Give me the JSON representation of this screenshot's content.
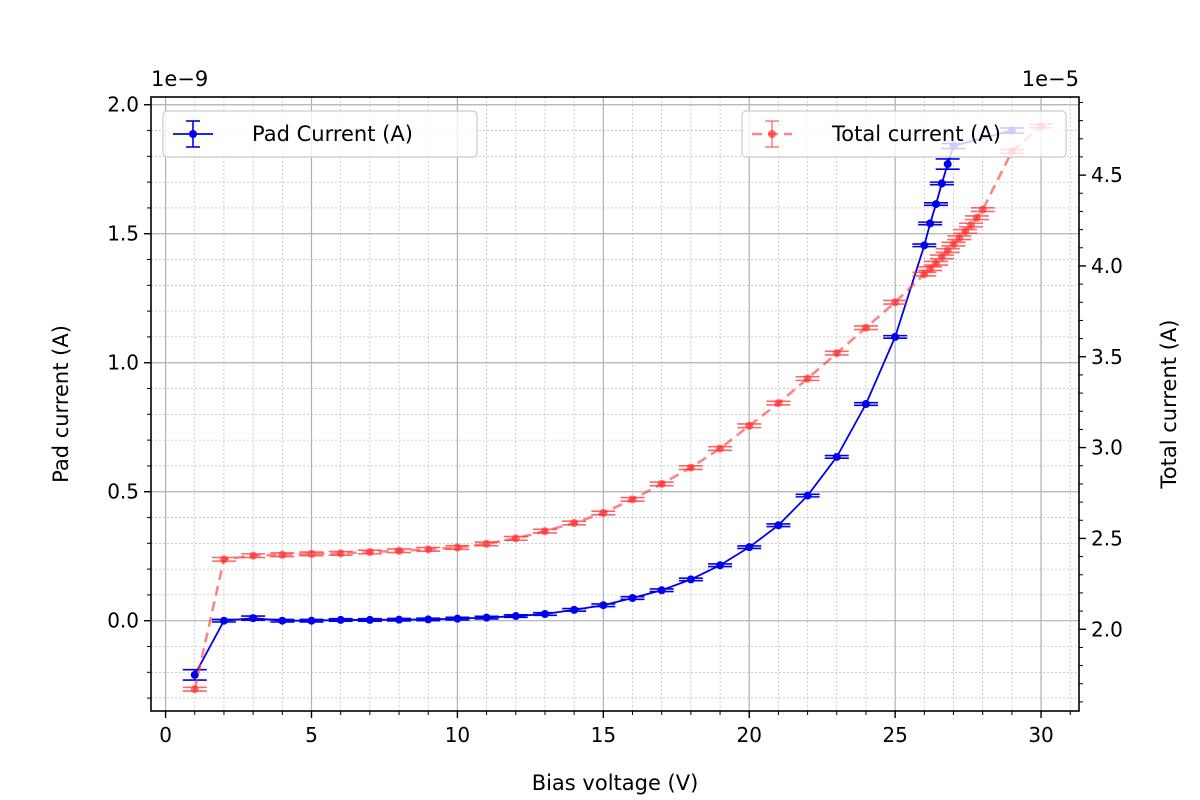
{
  "chart_data": {
    "type": "line",
    "xlabel": "Bias voltage (V)",
    "ylabel_left": "Pad current (A)",
    "ylabel_right": "Total current (A)",
    "left_exponent_label": "1e−9",
    "right_exponent_label": "1e−5",
    "xlim": [
      -0.5,
      31.3
    ],
    "ylim_left": [
      -0.35,
      2.03
    ],
    "ylim_right": [
      1.55,
      4.93
    ],
    "x_ticks": [
      0,
      5,
      10,
      15,
      20,
      25,
      30
    ],
    "x_tick_labels": [
      "0",
      "5",
      "10",
      "15",
      "20",
      "25",
      "30"
    ],
    "y_left_ticks": [
      0.0,
      0.5,
      1.0,
      1.5,
      2.0
    ],
    "y_left_tick_labels": [
      "0.0",
      "0.5",
      "1.0",
      "1.5",
      "2.0"
    ],
    "y_right_ticks": [
      2.0,
      2.5,
      3.0,
      3.5,
      4.0,
      4.5
    ],
    "y_right_tick_labels": [
      "2.0",
      "2.5",
      "3.0",
      "3.5",
      "4.0",
      "4.5"
    ],
    "grid": true,
    "minor_grid": true,
    "series": [
      {
        "name": "Pad Current (A)",
        "axis": "left",
        "color": "#0000ee",
        "linestyle": "solid",
        "legend_position": "top-left",
        "x": [
          1,
          2,
          3,
          4,
          5,
          6,
          7,
          8,
          9,
          10,
          11,
          12,
          13,
          14,
          15,
          16,
          17,
          18,
          19,
          20,
          21,
          22,
          23,
          24,
          25,
          26,
          26.2,
          26.4,
          26.6,
          26.8,
          27,
          29
        ],
        "y": [
          -0.21,
          0.0,
          0.01,
          0.0,
          0.0,
          0.003,
          0.003,
          0.004,
          0.005,
          0.008,
          0.012,
          0.018,
          0.026,
          0.042,
          0.06,
          0.088,
          0.118,
          0.16,
          0.215,
          0.285,
          0.37,
          0.485,
          0.635,
          0.84,
          1.1,
          1.455,
          1.54,
          1.615,
          1.695,
          1.77,
          1.84,
          1.9
        ],
        "yerr": [
          0.02,
          0.005,
          0.008,
          0.005,
          0.005,
          0.005,
          0.005,
          0.005,
          0.005,
          0.005,
          0.005,
          0.005,
          0.005,
          0.005,
          0.005,
          0.005,
          0.005,
          0.005,
          0.005,
          0.005,
          0.005,
          0.005,
          0.005,
          0.005,
          0.005,
          0.005,
          0.005,
          0.005,
          0.005,
          0.02,
          0.01,
          0.01
        ]
      },
      {
        "name": "Total current (A)",
        "axis": "right",
        "color": "#ff3333",
        "linestyle": "dashed",
        "legend_position": "top-right",
        "x": [
          1,
          2,
          3,
          4,
          5,
          6,
          7,
          8,
          9,
          10,
          11,
          12,
          13,
          14,
          15,
          16,
          17,
          18,
          19,
          20,
          21,
          22,
          23,
          24,
          25,
          26,
          26.2,
          26.4,
          26.6,
          26.8,
          27,
          27.2,
          27.4,
          27.6,
          27.8,
          28,
          29,
          30
        ],
        "y": [
          1.67,
          2.385,
          2.405,
          2.41,
          2.415,
          2.418,
          2.425,
          2.432,
          2.44,
          2.45,
          2.47,
          2.5,
          2.54,
          2.585,
          2.64,
          2.715,
          2.8,
          2.89,
          2.995,
          3.12,
          3.245,
          3.38,
          3.52,
          3.66,
          3.8,
          3.955,
          3.985,
          4.015,
          4.05,
          4.085,
          4.12,
          4.155,
          4.19,
          4.225,
          4.265,
          4.31,
          4.63,
          4.77
        ],
        "yerr": [
          0.01,
          0.01,
          0.01,
          0.01,
          0.01,
          0.01,
          0.01,
          0.01,
          0.01,
          0.01,
          0.01,
          0.01,
          0.01,
          0.01,
          0.01,
          0.01,
          0.01,
          0.01,
          0.01,
          0.01,
          0.01,
          0.01,
          0.01,
          0.01,
          0.01,
          0.01,
          0.01,
          0.01,
          0.01,
          0.01,
          0.01,
          0.01,
          0.01,
          0.01,
          0.01,
          0.01,
          0.01,
          0.01
        ]
      }
    ]
  }
}
